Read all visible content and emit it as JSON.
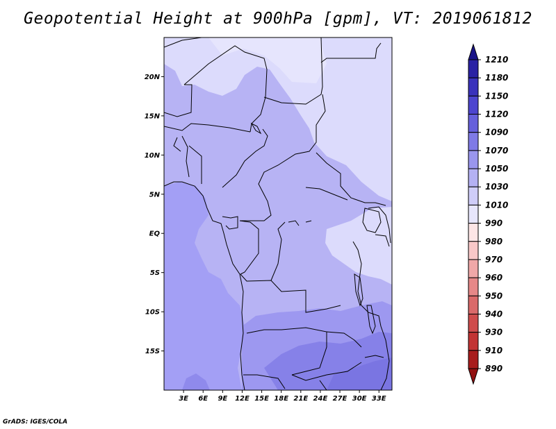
{
  "title": "Geopotential Height at 900hPa [gpm], VT: 2019061812",
  "credit": "GrADS: IGES/COLA",
  "map": {
    "lat_labels": [
      "20N",
      "15N",
      "10N",
      "5N",
      "EQ",
      "5S",
      "10S",
      "15S"
    ],
    "lat_values": [
      20,
      15,
      10,
      5,
      0,
      -5,
      -10,
      -15
    ],
    "lon_labels": [
      "3E",
      "6E",
      "9E",
      "12E",
      "15E",
      "18E",
      "21E",
      "24E",
      "27E",
      "30E",
      "33E"
    ],
    "lon_values": [
      3,
      6,
      9,
      12,
      15,
      18,
      21,
      24,
      27,
      30,
      33
    ],
    "lon_range": [
      0,
      35
    ],
    "lat_range": [
      -20,
      25
    ]
  },
  "colorbar": {
    "levels": [
      "1210",
      "1180",
      "1150",
      "1120",
      "1090",
      "1070",
      "1050",
      "1030",
      "1010",
      "990",
      "980",
      "970",
      "960",
      "950",
      "940",
      "930",
      "910",
      "890"
    ],
    "colors": [
      "#1a1488",
      "#2a22a4",
      "#3a32bc",
      "#4d45cf",
      "#6660dc",
      "#7f7ae6",
      "#9a96ee",
      "#b4b1f3",
      "#cfcdf8",
      "#e7e6fc",
      "#fde6e6",
      "#f8c8c8",
      "#f0a8a8",
      "#e68888",
      "#da6a6a",
      "#cf4c4c",
      "#c23434",
      "#a81c1c",
      "#921010"
    ]
  }
}
